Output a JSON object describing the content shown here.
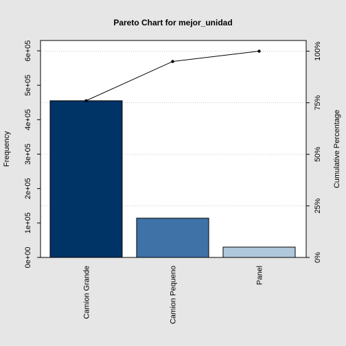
{
  "chart_data": {
    "type": "bar",
    "title": "Pareto Chart for mejor_unidad",
    "ylabel": "Frequency",
    "y2label": "Cumulative Percentage",
    "categories": [
      "Camion Grande",
      "Camion Pequeno",
      "Panel"
    ],
    "values": [
      455000,
      114000,
      30000
    ],
    "colors": [
      "#003366",
      "#3f72a6",
      "#b0c8dc"
    ],
    "cumulative_percent": [
      76,
      95,
      100
    ],
    "ylim": [
      0,
      630000
    ],
    "y_ticks": [
      0,
      100000,
      200000,
      300000,
      400000,
      500000,
      600000
    ],
    "y_tick_labels": [
      "0e+00",
      "1e+05",
      "2e+05",
      "3e+05",
      "4e+05",
      "5e+05",
      "6e+05"
    ],
    "y2_ticks": [
      0,
      25,
      50,
      75,
      100
    ],
    "y2_tick_labels": [
      "0%",
      "25%",
      "50%",
      "75%",
      "100%"
    ],
    "grid": "horizontal dotted at cumulative percentage ticks"
  }
}
